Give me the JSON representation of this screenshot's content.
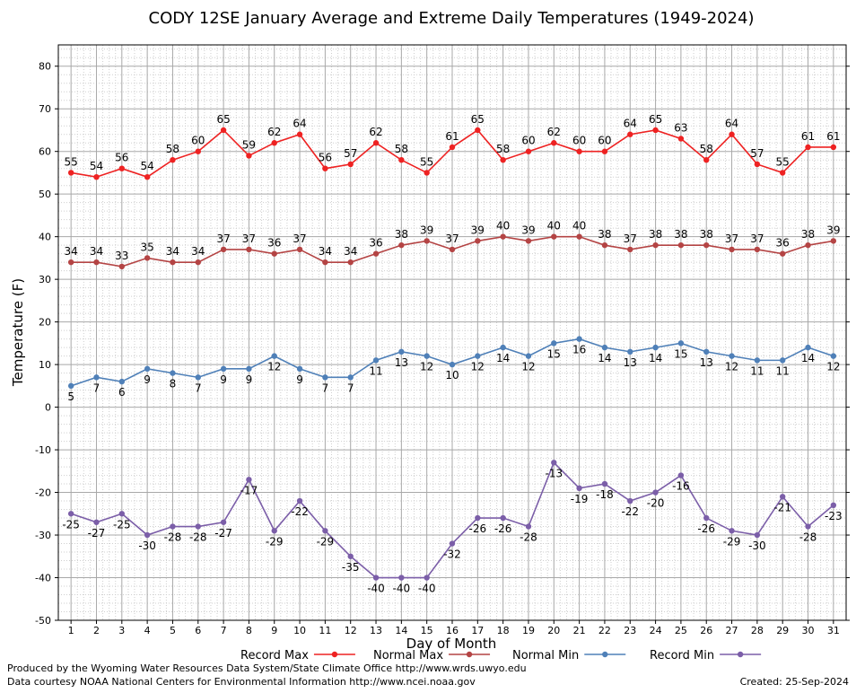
{
  "chart_data": {
    "type": "line",
    "title": "CODY 12SE January Average and Extreme Daily Temperatures (1949-2024)",
    "xlabel": "Day of Month",
    "ylabel": "Temperature (F)",
    "ylim": [
      -50,
      85
    ],
    "y_ticks": [
      -50,
      -40,
      -30,
      -20,
      -10,
      0,
      10,
      20,
      30,
      40,
      50,
      60,
      70,
      80
    ],
    "x": [
      1,
      2,
      3,
      4,
      5,
      6,
      7,
      8,
      9,
      10,
      11,
      12,
      13,
      14,
      15,
      16,
      17,
      18,
      19,
      20,
      21,
      22,
      23,
      24,
      25,
      26,
      27,
      28,
      29,
      30,
      31
    ],
    "grid": true,
    "legend_position": "bottom",
    "series": [
      {
        "name": "Record Max",
        "color": "#ee2222",
        "label_position": "above",
        "values": [
          55,
          54,
          56,
          54,
          58,
          60,
          65,
          59,
          62,
          64,
          56,
          57,
          62,
          58,
          55,
          61,
          65,
          58,
          60,
          62,
          60,
          60,
          64,
          65,
          63,
          58,
          64,
          57,
          55,
          61,
          61
        ]
      },
      {
        "name": "Normal Max",
        "color": "#b44444",
        "label_position": "above",
        "values": [
          34,
          34,
          33,
          35,
          34,
          34,
          37,
          37,
          36,
          37,
          34,
          34,
          36,
          38,
          39,
          37,
          39,
          40,
          39,
          40,
          40,
          38,
          37,
          38,
          38,
          38,
          37,
          37,
          36,
          38,
          39
        ]
      },
      {
        "name": "Normal Min",
        "color": "#4f80b8",
        "label_position": "below",
        "values": [
          5,
          7,
          6,
          9,
          8,
          7,
          9,
          9,
          12,
          9,
          7,
          7,
          11,
          13,
          12,
          10,
          12,
          14,
          12,
          15,
          16,
          14,
          13,
          14,
          15,
          13,
          12,
          11,
          11,
          14,
          12
        ]
      },
      {
        "name": "Record Min",
        "color": "#7b5ea8",
        "label_position": "below",
        "values": [
          -25,
          -27,
          -25,
          -30,
          -28,
          -28,
          -27,
          -17,
          -29,
          -22,
          -29,
          -35,
          -40,
          -40,
          -40,
          -32,
          -26,
          -26,
          -28,
          -13,
          -19,
          -18,
          -22,
          -20,
          -16,
          -26,
          -29,
          -30,
          -21,
          -28,
          -23
        ]
      }
    ]
  },
  "footer": {
    "produced_by": "Produced by the Wyoming Water Resources Data System/State Climate Office http://www.wrds.uwyo.edu",
    "data_courtesy": "Data courtesy NOAA National Centers for Environmental Information http://www.ncei.noaa.gov",
    "created": "Created:  25-Sep-2024"
  }
}
